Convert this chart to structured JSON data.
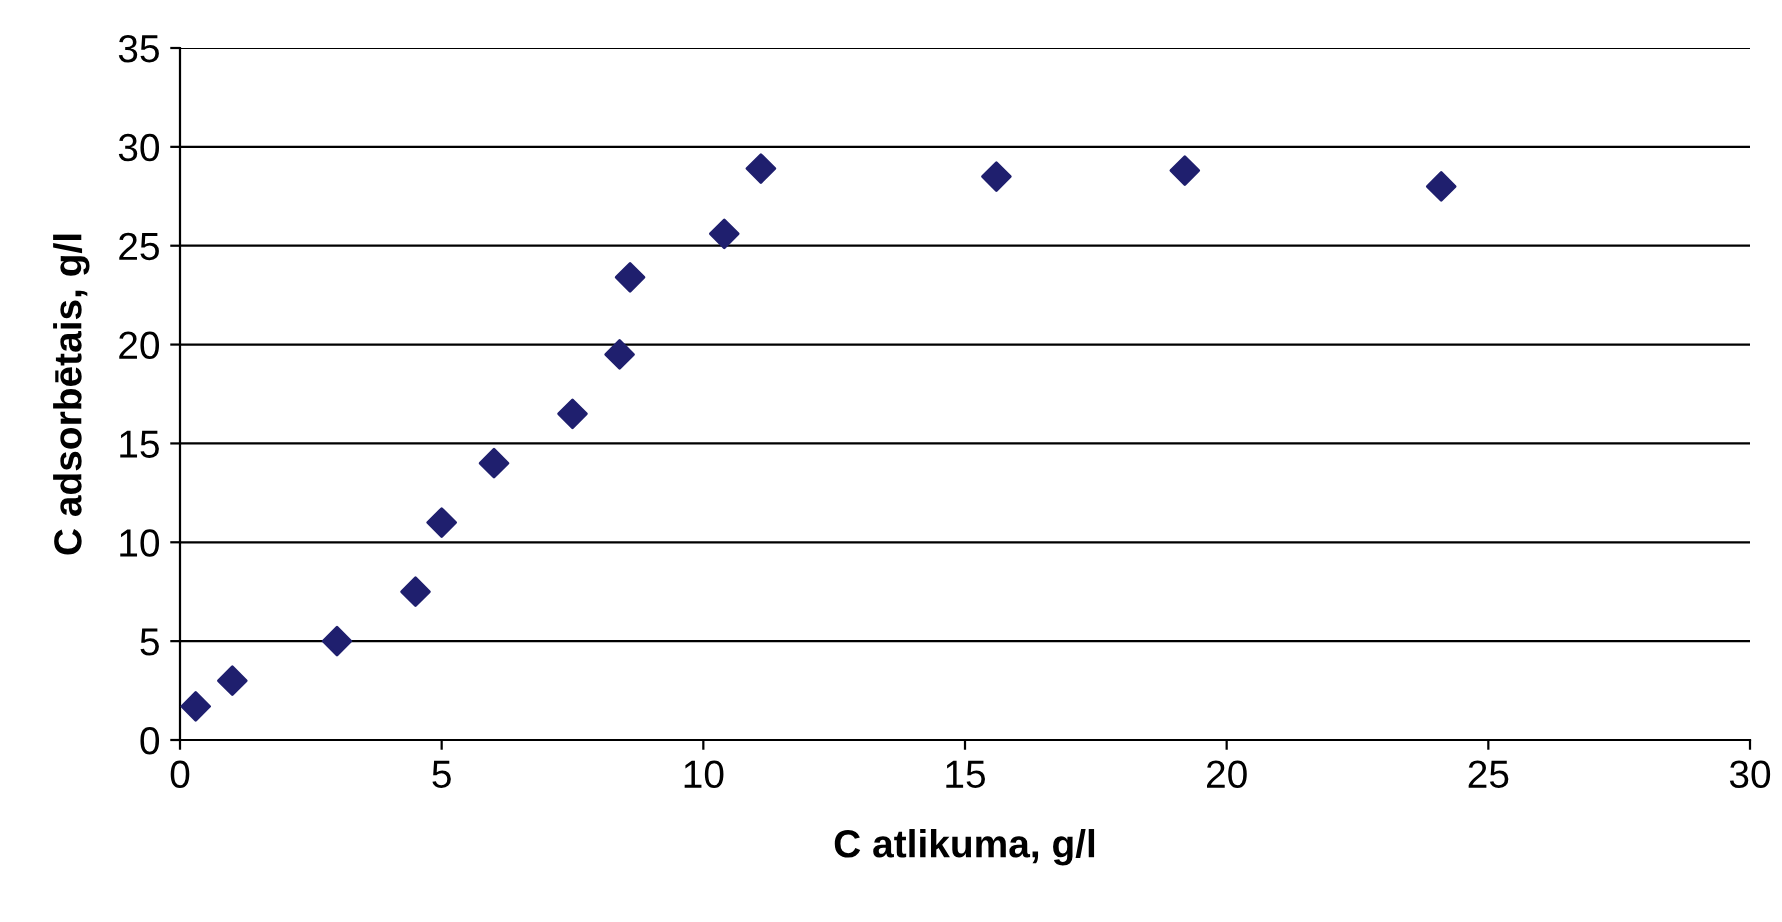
{
  "chart_data": {
    "type": "scatter",
    "xlabel": "C atlikuma, g/l",
    "ylabel": "C adsorbētais, g/l",
    "x": [
      0.3,
      1.0,
      3.0,
      4.5,
      5.0,
      6.0,
      7.5,
      8.4,
      8.6,
      10.4,
      11.1,
      15.6,
      19.2,
      24.1
    ],
    "series": [
      {
        "color": "#1f1f6e",
        "values": [
          1.7,
          3.0,
          5.0,
          7.5,
          11.0,
          14.0,
          16.5,
          19.5,
          23.4,
          25.6,
          28.9,
          28.5,
          28.8,
          28.0
        ]
      }
    ],
    "xlim": [
      0,
      30
    ],
    "xticks": [
      0,
      5,
      10,
      15,
      20,
      25,
      30
    ],
    "ylim": [
      0,
      35
    ],
    "yticks": [
      0,
      5,
      10,
      15,
      20,
      25,
      30,
      35
    ],
    "grid": "y",
    "marker": "diamond",
    "legend": false
  }
}
